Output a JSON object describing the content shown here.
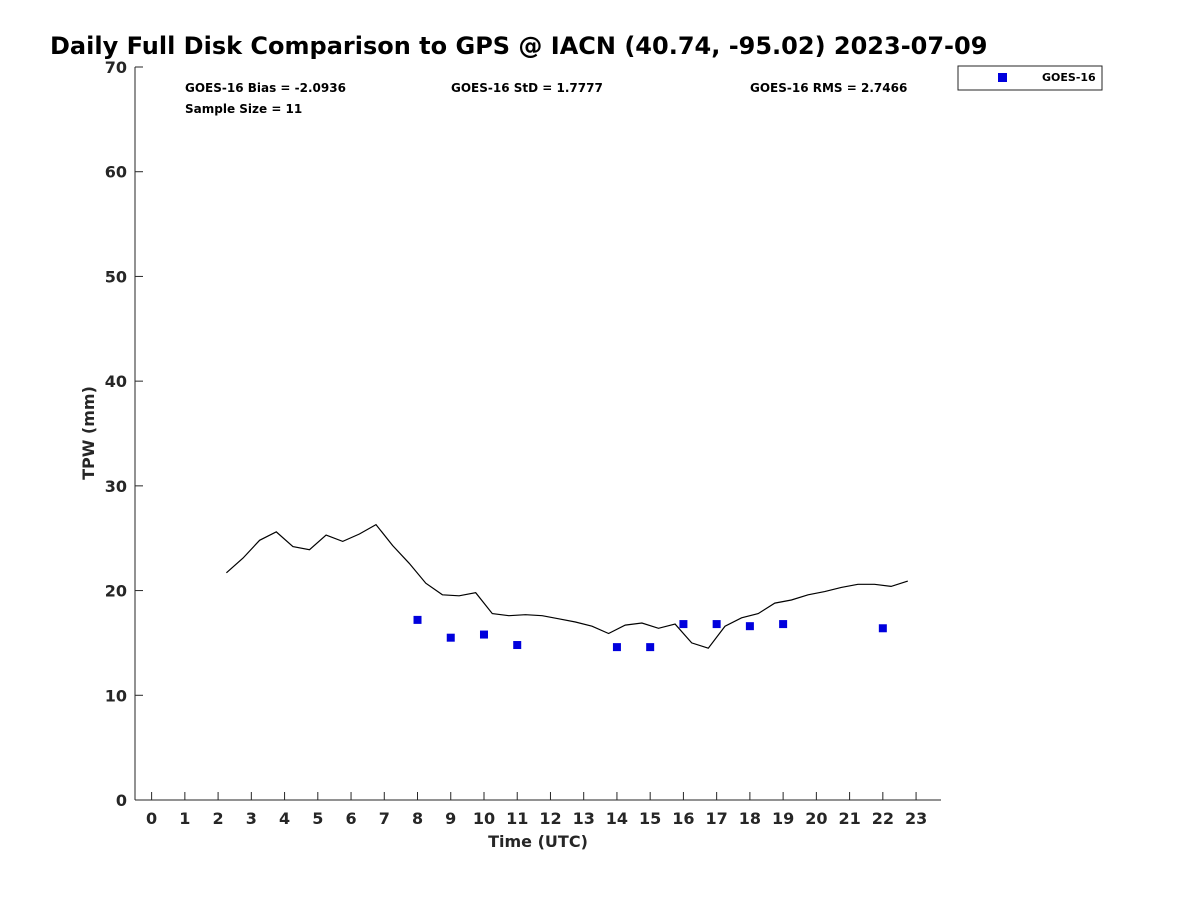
{
  "chart_data": {
    "type": "scatter",
    "title": "Daily Full Disk Comparison to GPS @ IACN (40.74, -95.02) 2023-07-09",
    "xlabel": "Time (UTC)",
    "ylabel": "TPW (mm)",
    "xlim": [
      -0.5,
      23.75
    ],
    "ylim": [
      0,
      70
    ],
    "x_ticks": [
      0,
      1,
      2,
      3,
      4,
      5,
      6,
      7,
      8,
      9,
      10,
      11,
      12,
      13,
      14,
      15,
      16,
      17,
      18,
      19,
      20,
      21,
      22,
      23
    ],
    "y_ticks": [
      0,
      10,
      20,
      30,
      40,
      50,
      60,
      70
    ],
    "grid": false,
    "legend_position": "top-right-outside",
    "stats": {
      "bias": "GOES-16 Bias = -2.0936",
      "std": "GOES-16 StD = 1.7777",
      "rms": "GOES-16 RMS = 2.7466",
      "sample": "Sample Size = 11"
    },
    "series": [
      {
        "name": "GOES-16",
        "kind": "scatter",
        "color": "#0000dd",
        "x": [
          8,
          9,
          10,
          11,
          14,
          15,
          16,
          17,
          18,
          19,
          22
        ],
        "y": [
          17.2,
          15.5,
          15.8,
          14.8,
          14.6,
          14.6,
          16.8,
          16.8,
          16.6,
          16.8,
          16.4
        ]
      },
      {
        "kind": "line",
        "color": "#000000",
        "x": [
          2.25,
          2.75,
          3.25,
          3.75,
          4.25,
          4.75,
          5.25,
          5.75,
          6.25,
          6.75,
          7.25,
          7.75,
          8.25,
          8.75,
          9.25,
          9.75,
          10.25,
          10.75,
          11.25,
          11.75,
          12.25,
          12.75,
          13.25,
          13.75,
          14.25,
          14.75,
          15.25,
          15.75,
          16.25,
          16.75,
          17.25,
          17.75,
          18.25,
          18.75,
          19.25,
          19.75,
          20.25,
          20.75,
          21.25,
          21.75,
          22.25,
          22.75
        ],
        "y": [
          21.7,
          23.1,
          24.8,
          25.6,
          24.2,
          23.9,
          25.3,
          24.7,
          25.4,
          26.3,
          24.3,
          22.6,
          20.7,
          19.6,
          19.5,
          19.8,
          17.8,
          17.6,
          17.7,
          17.6,
          17.3,
          17.0,
          16.6,
          15.9,
          16.7,
          16.9,
          16.4,
          16.8,
          15.0,
          14.5,
          16.6,
          17.4,
          17.8,
          18.8,
          19.1,
          19.6,
          19.9,
          20.3,
          20.6,
          20.6,
          20.4,
          20.9
        ]
      }
    ]
  }
}
